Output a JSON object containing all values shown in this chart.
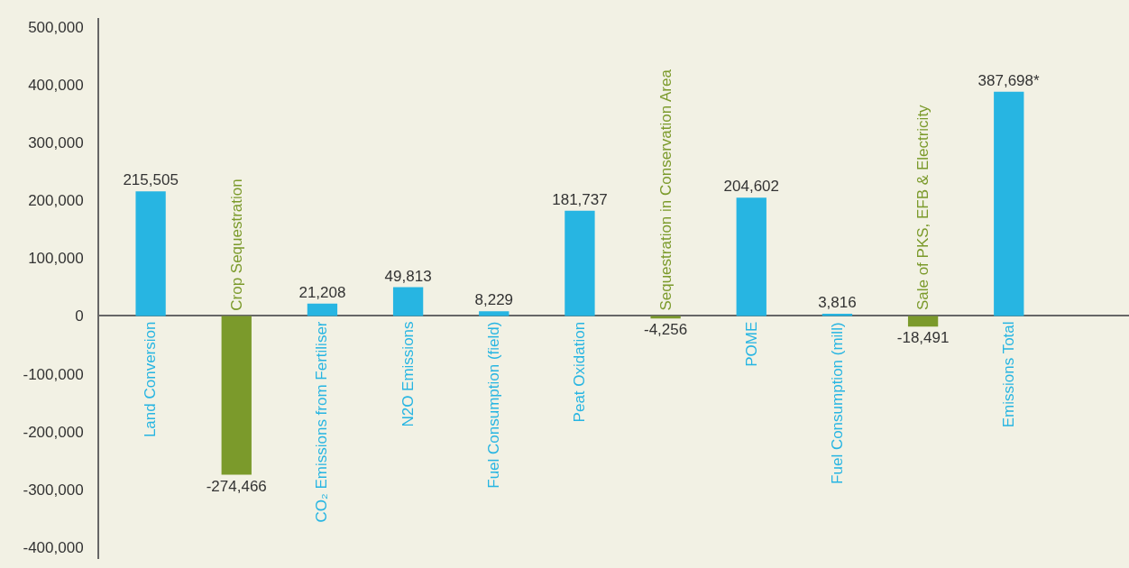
{
  "chart_data": {
    "type": "bar",
    "categories": [
      "Land Conversion",
      "Crop Sequestration",
      "CO₂ Emissions from Fertiliser",
      "N2O Emissions",
      "Fuel Consumption (field)",
      "Peat Oxidation",
      "Sequestration in Conservation Area",
      "POME",
      "Fuel Consumption (mill)",
      "Sale of PKS, EFB & Electricity",
      "Emissions Total"
    ],
    "values": [
      215505,
      -274466,
      21208,
      49813,
      8229,
      181737,
      -4256,
      204602,
      3816,
      -18491,
      387698
    ],
    "value_labels": [
      "215,505",
      "-274,466",
      "21,208",
      "49,813",
      "8,229",
      "181,737",
      "-4,256",
      "204,602",
      "3,816",
      "-18,491",
      "387,698*"
    ],
    "colors": [
      "#27b5e2",
      "#7b9a2b",
      "#27b5e2",
      "#27b5e2",
      "#27b5e2",
      "#27b5e2",
      "#7b9a2b",
      "#27b5e2",
      "#27b5e2",
      "#7b9a2b",
      "#27b5e2"
    ],
    "ylim": [
      -420000,
      515000
    ],
    "yticks": [
      {
        "value": -400000,
        "label": "-400,000"
      },
      {
        "value": -300000,
        "label": "-300,000"
      },
      {
        "value": -200000,
        "label": "-200,000"
      },
      {
        "value": -100000,
        "label": "-100,000"
      },
      0,
      {
        "value": 100000,
        "label": "100,000"
      },
      {
        "value": 200000,
        "label": "200,000"
      },
      {
        "value": 300000,
        "label": "300,000"
      },
      {
        "value": 400000,
        "label": "400,000"
      },
      {
        "value": 500000,
        "label": "500,000"
      }
    ],
    "grid": false,
    "legend": false
  }
}
